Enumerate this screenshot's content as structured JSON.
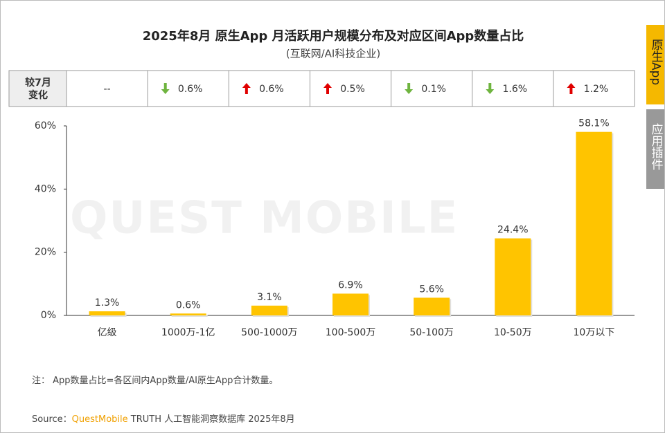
{
  "chart_data": {
    "type": "bar",
    "title": "2025年8月 原生App 月活跃用户规模分布及对应区间App数量占比",
    "subtitle": "(互联网/AI科技企业)",
    "change_header": "较7月变化",
    "changes": [
      {
        "label": "--"
      },
      {
        "direction": "down",
        "label": "0.6%"
      },
      {
        "direction": "up",
        "label": "0.6%"
      },
      {
        "direction": "up",
        "label": "0.5%"
      },
      {
        "direction": "down",
        "label": "0.1%"
      },
      {
        "direction": "down",
        "label": "1.6%"
      },
      {
        "direction": "up",
        "label": "1.2%"
      }
    ],
    "categories": [
      "亿级",
      "1000万-1亿",
      "500-1000万",
      "100-500万",
      "50-100万",
      "10-50万",
      "10万以下"
    ],
    "values": [
      1.3,
      0.6,
      3.1,
      6.9,
      5.6,
      24.4,
      58.1
    ],
    "value_labels": [
      "1.3%",
      "0.6%",
      "3.1%",
      "6.9%",
      "5.6%",
      "24.4%",
      "58.1%"
    ],
    "color": "#ffc400",
    "ylim": [
      0,
      60
    ],
    "yticks": [
      {
        "value": 0,
        "label": "0%"
      },
      {
        "value": 20,
        "label": "20%"
      },
      {
        "value": 40,
        "label": "40%"
      },
      {
        "value": 60,
        "label": "60%"
      }
    ],
    "note": "注：  App数量占比=各区间内App数量/AI原生App合计数量。",
    "source_prefix": "Source：",
    "source_brand": "QuestMobile",
    "source_text": "TRUTH 人工智能洞察数据库 2025年8月",
    "watermark": "QUEST MOBILE",
    "tabs": [
      "原生App",
      "应用插件"
    ]
  }
}
